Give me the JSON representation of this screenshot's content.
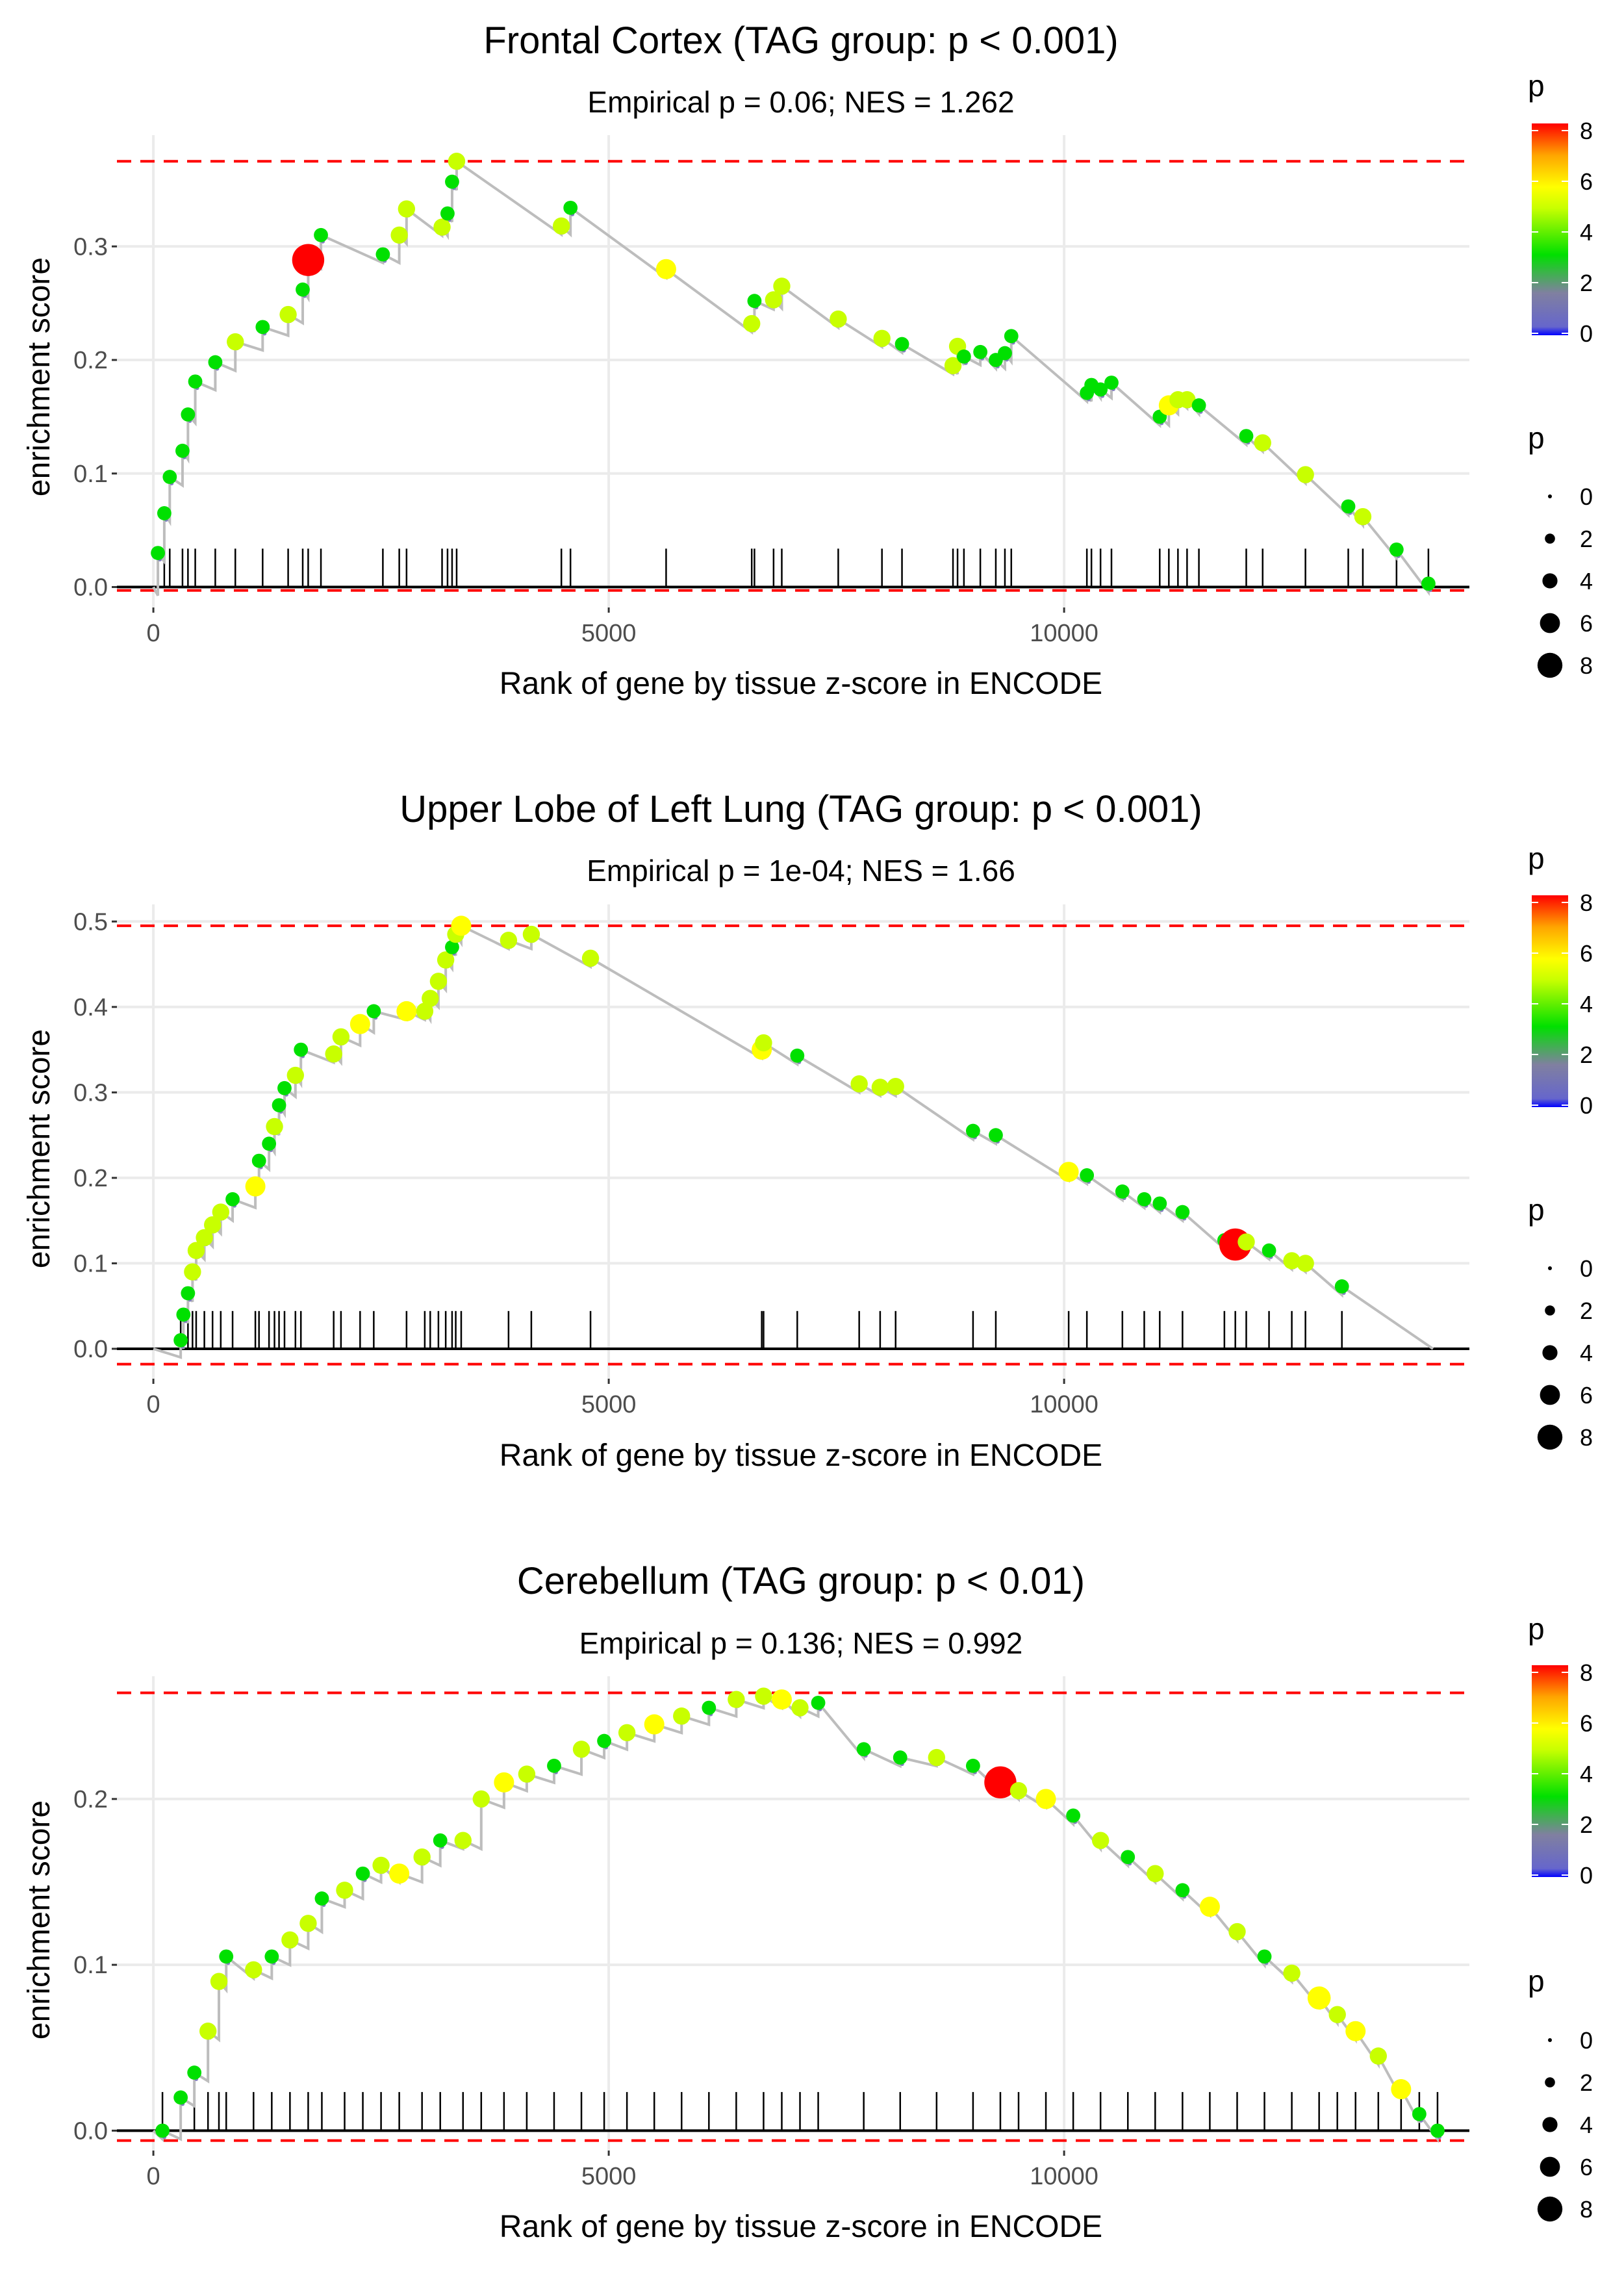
{
  "figure": {
    "x_axis_label": "Rank of gene by tissue z-score in ENCODE",
    "y_axis_label": "enrichment score",
    "legend_colorbar_title": "p",
    "legend_size_title": "p",
    "colorbar_ticks": [
      "8",
      "6",
      "4",
      "2",
      "0"
    ],
    "size_legend_labels": [
      "0",
      "2",
      "4",
      "6",
      "8"
    ],
    "palette": [
      "#0000ff",
      "#7f7fa0",
      "#00e000",
      "#c8ff00",
      "#ffff00",
      "#ffa500",
      "#ff0000"
    ]
  },
  "chart_data": [
    {
      "type": "line",
      "title": "Frontal Cortex (TAG group: p < 0.001)",
      "subtitle": "Empirical p = 0.06; NES = 1.262",
      "xlabel": "Rank of gene by tissue z-score in ENCODE",
      "ylabel": "enrichment score",
      "xlim": [
        -400,
        14450
      ],
      "ylim": [
        -0.018,
        0.398
      ],
      "x_ticks": [
        0,
        5000,
        10000
      ],
      "x_tick_labels": [
        "0",
        "5000",
        "10000"
      ],
      "y_ticks": [
        0,
        0.1,
        0.2,
        0.3
      ],
      "y_tick_labels": [
        "0.0",
        "0.1",
        "0.2",
        "0.3"
      ],
      "max_es": 0.375,
      "min_es": -0.003,
      "hits": [
        {
          "x": 50,
          "y": 0.03,
          "p": 3
        },
        {
          "x": 120,
          "y": 0.065,
          "p": 3
        },
        {
          "x": 180,
          "y": 0.097,
          "p": 3
        },
        {
          "x": 320,
          "y": 0.12,
          "p": 3
        },
        {
          "x": 380,
          "y": 0.152,
          "p": 3
        },
        {
          "x": 460,
          "y": 0.181,
          "p": 3
        },
        {
          "x": 680,
          "y": 0.198,
          "p": 3
        },
        {
          "x": 900,
          "y": 0.216,
          "p": 4
        },
        {
          "x": 1200,
          "y": 0.229,
          "p": 3
        },
        {
          "x": 1480,
          "y": 0.24,
          "p": 4
        },
        {
          "x": 1640,
          "y": 0.262,
          "p": 3
        },
        {
          "x": 1700,
          "y": 0.288,
          "p": 9
        },
        {
          "x": 1840,
          "y": 0.31,
          "p": 3
        },
        {
          "x": 2520,
          "y": 0.293,
          "p": 3
        },
        {
          "x": 2700,
          "y": 0.31,
          "p": 4
        },
        {
          "x": 2780,
          "y": 0.333,
          "p": 4
        },
        {
          "x": 3170,
          "y": 0.317,
          "p": 4
        },
        {
          "x": 3230,
          "y": 0.329,
          "p": 3
        },
        {
          "x": 3280,
          "y": 0.357,
          "p": 3
        },
        {
          "x": 3330,
          "y": 0.375,
          "p": 4
        },
        {
          "x": 4480,
          "y": 0.318,
          "p": 4
        },
        {
          "x": 4580,
          "y": 0.334,
          "p": 3
        },
        {
          "x": 5630,
          "y": 0.28,
          "p": 5
        },
        {
          "x": 6570,
          "y": 0.232,
          "p": 4
        },
        {
          "x": 6600,
          "y": 0.252,
          "p": 3
        },
        {
          "x": 6810,
          "y": 0.253,
          "p": 4
        },
        {
          "x": 6900,
          "y": 0.265,
          "p": 4
        },
        {
          "x": 7520,
          "y": 0.236,
          "p": 4
        },
        {
          "x": 8000,
          "y": 0.219,
          "p": 4
        },
        {
          "x": 8220,
          "y": 0.214,
          "p": 3
        },
        {
          "x": 8780,
          "y": 0.195,
          "p": 4
        },
        {
          "x": 8830,
          "y": 0.212,
          "p": 4
        },
        {
          "x": 8900,
          "y": 0.203,
          "p": 3
        },
        {
          "x": 9080,
          "y": 0.207,
          "p": 3
        },
        {
          "x": 9250,
          "y": 0.2,
          "p": 3
        },
        {
          "x": 9350,
          "y": 0.206,
          "p": 3
        },
        {
          "x": 9420,
          "y": 0.221,
          "p": 3
        },
        {
          "x": 10250,
          "y": 0.171,
          "p": 3
        },
        {
          "x": 10300,
          "y": 0.178,
          "p": 3
        },
        {
          "x": 10400,
          "y": 0.174,
          "p": 3
        },
        {
          "x": 10520,
          "y": 0.18,
          "p": 3
        },
        {
          "x": 11050,
          "y": 0.15,
          "p": 3
        },
        {
          "x": 11150,
          "y": 0.16,
          "p": 5
        },
        {
          "x": 11250,
          "y": 0.165,
          "p": 4
        },
        {
          "x": 11350,
          "y": 0.165,
          "p": 4
        },
        {
          "x": 11480,
          "y": 0.16,
          "p": 3
        },
        {
          "x": 12000,
          "y": 0.133,
          "p": 3
        },
        {
          "x": 12180,
          "y": 0.127,
          "p": 4
        },
        {
          "x": 12650,
          "y": 0.099,
          "p": 4
        },
        {
          "x": 13120,
          "y": 0.071,
          "p": 3
        },
        {
          "x": 13280,
          "y": 0.062,
          "p": 4
        },
        {
          "x": 13650,
          "y": 0.033,
          "p": 3
        },
        {
          "x": 14000,
          "y": 0.003,
          "p": 3
        }
      ]
    },
    {
      "type": "line",
      "title": "Upper Lobe of Left Lung (TAG group: p < 0.001)",
      "subtitle": "Empirical p = 1e-04; NES = 1.66",
      "xlabel": "Rank of gene by tissue z-score in ENCODE",
      "ylabel": "enrichment score",
      "xlim": [
        -400,
        14450
      ],
      "ylim": [
        -0.035,
        0.52
      ],
      "x_ticks": [
        0,
        5000,
        10000
      ],
      "x_tick_labels": [
        "0",
        "5000",
        "10000"
      ],
      "y_ticks": [
        0,
        0.1,
        0.2,
        0.3,
        0.4,
        0.5
      ],
      "y_tick_labels": [
        "0.0",
        "0.1",
        "0.2",
        "0.3",
        "0.4",
        "0.5"
      ],
      "max_es": 0.495,
      "min_es": -0.018,
      "hits": [
        {
          "x": 300,
          "y": 0.01,
          "p": 3
        },
        {
          "x": 330,
          "y": 0.04,
          "p": 3
        },
        {
          "x": 380,
          "y": 0.065,
          "p": 3
        },
        {
          "x": 430,
          "y": 0.09,
          "p": 4
        },
        {
          "x": 470,
          "y": 0.115,
          "p": 4
        },
        {
          "x": 560,
          "y": 0.13,
          "p": 4
        },
        {
          "x": 650,
          "y": 0.145,
          "p": 4
        },
        {
          "x": 740,
          "y": 0.16,
          "p": 4
        },
        {
          "x": 870,
          "y": 0.175,
          "p": 3
        },
        {
          "x": 1120,
          "y": 0.19,
          "p": 5
        },
        {
          "x": 1160,
          "y": 0.22,
          "p": 3
        },
        {
          "x": 1270,
          "y": 0.24,
          "p": 3
        },
        {
          "x": 1330,
          "y": 0.26,
          "p": 4
        },
        {
          "x": 1380,
          "y": 0.285,
          "p": 3
        },
        {
          "x": 1440,
          "y": 0.305,
          "p": 3
        },
        {
          "x": 1560,
          "y": 0.32,
          "p": 4
        },
        {
          "x": 1620,
          "y": 0.35,
          "p": 3
        },
        {
          "x": 1980,
          "y": 0.345,
          "p": 4
        },
        {
          "x": 2060,
          "y": 0.365,
          "p": 4
        },
        {
          "x": 2270,
          "y": 0.38,
          "p": 5
        },
        {
          "x": 2420,
          "y": 0.395,
          "p": 3
        },
        {
          "x": 2780,
          "y": 0.395,
          "p": 5
        },
        {
          "x": 2980,
          "y": 0.395,
          "p": 4
        },
        {
          "x": 3040,
          "y": 0.41,
          "p": 4
        },
        {
          "x": 3130,
          "y": 0.43,
          "p": 4
        },
        {
          "x": 3210,
          "y": 0.455,
          "p": 4
        },
        {
          "x": 3280,
          "y": 0.47,
          "p": 3
        },
        {
          "x": 3320,
          "y": 0.485,
          "p": 4
        },
        {
          "x": 3380,
          "y": 0.495,
          "p": 5
        },
        {
          "x": 3900,
          "y": 0.478,
          "p": 4
        },
        {
          "x": 4150,
          "y": 0.485,
          "p": 4
        },
        {
          "x": 4800,
          "y": 0.457,
          "p": 4
        },
        {
          "x": 6680,
          "y": 0.35,
          "p": 5
        },
        {
          "x": 6700,
          "y": 0.358,
          "p": 4
        },
        {
          "x": 7070,
          "y": 0.343,
          "p": 3
        },
        {
          "x": 7750,
          "y": 0.31,
          "p": 4
        },
        {
          "x": 7980,
          "y": 0.306,
          "p": 4
        },
        {
          "x": 8150,
          "y": 0.307,
          "p": 4
        },
        {
          "x": 9000,
          "y": 0.255,
          "p": 3
        },
        {
          "x": 9250,
          "y": 0.25,
          "p": 3
        },
        {
          "x": 10050,
          "y": 0.207,
          "p": 5
        },
        {
          "x": 10250,
          "y": 0.203,
          "p": 3
        },
        {
          "x": 10640,
          "y": 0.184,
          "p": 3
        },
        {
          "x": 10880,
          "y": 0.175,
          "p": 3
        },
        {
          "x": 11050,
          "y": 0.17,
          "p": 3
        },
        {
          "x": 11300,
          "y": 0.16,
          "p": 3
        },
        {
          "x": 11760,
          "y": 0.127,
          "p": 3
        },
        {
          "x": 11880,
          "y": 0.122,
          "p": 9
        },
        {
          "x": 12000,
          "y": 0.125,
          "p": 4
        },
        {
          "x": 12250,
          "y": 0.115,
          "p": 3
        },
        {
          "x": 12500,
          "y": 0.103,
          "p": 4
        },
        {
          "x": 12650,
          "y": 0.1,
          "p": 4
        },
        {
          "x": 13050,
          "y": 0.073,
          "p": 3
        }
      ]
    },
    {
      "type": "line",
      "title": "Cerebellum (TAG group: p < 0.01)",
      "subtitle": "Empirical p = 0.136; NES = 0.992",
      "xlabel": "Rank of gene by tissue z-score in ENCODE",
      "ylabel": "enrichment score",
      "xlim": [
        -400,
        14450
      ],
      "ylim": [
        -0.012,
        0.274
      ],
      "x_ticks": [
        0,
        5000,
        10000
      ],
      "x_tick_labels": [
        "0",
        "5000",
        "10000"
      ],
      "y_ticks": [
        0,
        0.1,
        0.2
      ],
      "y_tick_labels": [
        "0.0",
        "0.1",
        "0.2"
      ],
      "max_es": 0.264,
      "min_es": -0.006,
      "hits": [
        {
          "x": 100,
          "y": 0.0,
          "p": 3
        },
        {
          "x": 300,
          "y": 0.02,
          "p": 3
        },
        {
          "x": 450,
          "y": 0.035,
          "p": 3
        },
        {
          "x": 600,
          "y": 0.06,
          "p": 4
        },
        {
          "x": 720,
          "y": 0.09,
          "p": 4
        },
        {
          "x": 800,
          "y": 0.105,
          "p": 3
        },
        {
          "x": 1100,
          "y": 0.097,
          "p": 4
        },
        {
          "x": 1300,
          "y": 0.105,
          "p": 3
        },
        {
          "x": 1500,
          "y": 0.115,
          "p": 4
        },
        {
          "x": 1700,
          "y": 0.125,
          "p": 4
        },
        {
          "x": 1850,
          "y": 0.14,
          "p": 3
        },
        {
          "x": 2100,
          "y": 0.145,
          "p": 4
        },
        {
          "x": 2300,
          "y": 0.155,
          "p": 3
        },
        {
          "x": 2500,
          "y": 0.16,
          "p": 4
        },
        {
          "x": 2700,
          "y": 0.155,
          "p": 5
        },
        {
          "x": 2950,
          "y": 0.165,
          "p": 4
        },
        {
          "x": 3150,
          "y": 0.175,
          "p": 3
        },
        {
          "x": 3400,
          "y": 0.175,
          "p": 4
        },
        {
          "x": 3600,
          "y": 0.2,
          "p": 4
        },
        {
          "x": 3850,
          "y": 0.21,
          "p": 5
        },
        {
          "x": 4100,
          "y": 0.215,
          "p": 4
        },
        {
          "x": 4400,
          "y": 0.22,
          "p": 3
        },
        {
          "x": 4700,
          "y": 0.23,
          "p": 4
        },
        {
          "x": 4950,
          "y": 0.235,
          "p": 3
        },
        {
          "x": 5200,
          "y": 0.24,
          "p": 4
        },
        {
          "x": 5500,
          "y": 0.245,
          "p": 5
        },
        {
          "x": 5800,
          "y": 0.25,
          "p": 4
        },
        {
          "x": 6100,
          "y": 0.255,
          "p": 3
        },
        {
          "x": 6400,
          "y": 0.26,
          "p": 4
        },
        {
          "x": 6700,
          "y": 0.262,
          "p": 4
        },
        {
          "x": 6900,
          "y": 0.26,
          "p": 5
        },
        {
          "x": 7100,
          "y": 0.255,
          "p": 4
        },
        {
          "x": 7300,
          "y": 0.258,
          "p": 3
        },
        {
          "x": 7800,
          "y": 0.23,
          "p": 3
        },
        {
          "x": 8200,
          "y": 0.225,
          "p": 3
        },
        {
          "x": 8600,
          "y": 0.225,
          "p": 4
        },
        {
          "x": 9000,
          "y": 0.22,
          "p": 3
        },
        {
          "x": 9300,
          "y": 0.21,
          "p": 9
        },
        {
          "x": 9500,
          "y": 0.205,
          "p": 4
        },
        {
          "x": 9800,
          "y": 0.2,
          "p": 5
        },
        {
          "x": 10100,
          "y": 0.19,
          "p": 3
        },
        {
          "x": 10400,
          "y": 0.175,
          "p": 4
        },
        {
          "x": 10700,
          "y": 0.165,
          "p": 3
        },
        {
          "x": 11000,
          "y": 0.155,
          "p": 4
        },
        {
          "x": 11300,
          "y": 0.145,
          "p": 3
        },
        {
          "x": 11600,
          "y": 0.135,
          "p": 5
        },
        {
          "x": 11900,
          "y": 0.12,
          "p": 4
        },
        {
          "x": 12200,
          "y": 0.105,
          "p": 3
        },
        {
          "x": 12500,
          "y": 0.095,
          "p": 4
        },
        {
          "x": 12800,
          "y": 0.08,
          "p": 6
        },
        {
          "x": 13000,
          "y": 0.07,
          "p": 4
        },
        {
          "x": 13200,
          "y": 0.06,
          "p": 5
        },
        {
          "x": 13450,
          "y": 0.045,
          "p": 4
        },
        {
          "x": 13700,
          "y": 0.025,
          "p": 5
        },
        {
          "x": 13900,
          "y": 0.01,
          "p": 3
        },
        {
          "x": 14100,
          "y": 0.0,
          "p": 3
        }
      ]
    }
  ]
}
